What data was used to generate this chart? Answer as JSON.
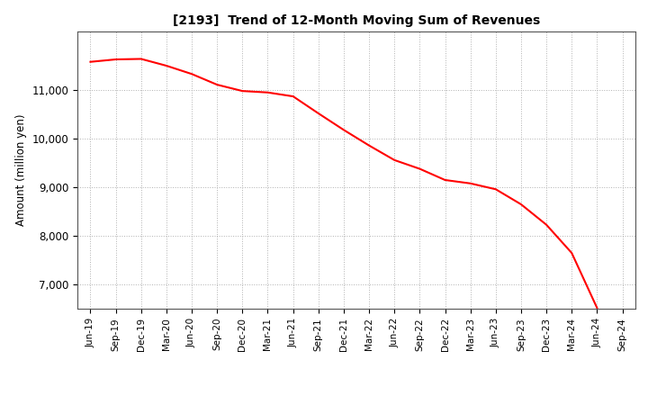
{
  "title": "[2193]  Trend of 12-Month Moving Sum of Revenues",
  "ylabel": "Amount (million yen)",
  "line_color": "#ff0000",
  "background_color": "#ffffff",
  "grid_color": "#b0b0b0",
  "ylim": [
    6500,
    12200
  ],
  "yticks": [
    7000,
    8000,
    9000,
    10000,
    11000
  ],
  "x_labels": [
    "Jun-19",
    "Sep-19",
    "Dec-19",
    "Mar-20",
    "Jun-20",
    "Sep-20",
    "Dec-20",
    "Mar-21",
    "Jun-21",
    "Sep-21",
    "Dec-21",
    "Mar-22",
    "Jun-22",
    "Sep-22",
    "Dec-22",
    "Mar-23",
    "Jun-23",
    "Sep-23",
    "Dec-23",
    "Mar-24",
    "Jun-24",
    "Sep-24"
  ],
  "values": [
    11580,
    11630,
    11640,
    11500,
    11330,
    11110,
    10980,
    10950,
    10870,
    10520,
    10180,
    9860,
    9560,
    9380,
    9150,
    9080,
    8960,
    8650,
    8230,
    7650,
    6520,
    null
  ]
}
